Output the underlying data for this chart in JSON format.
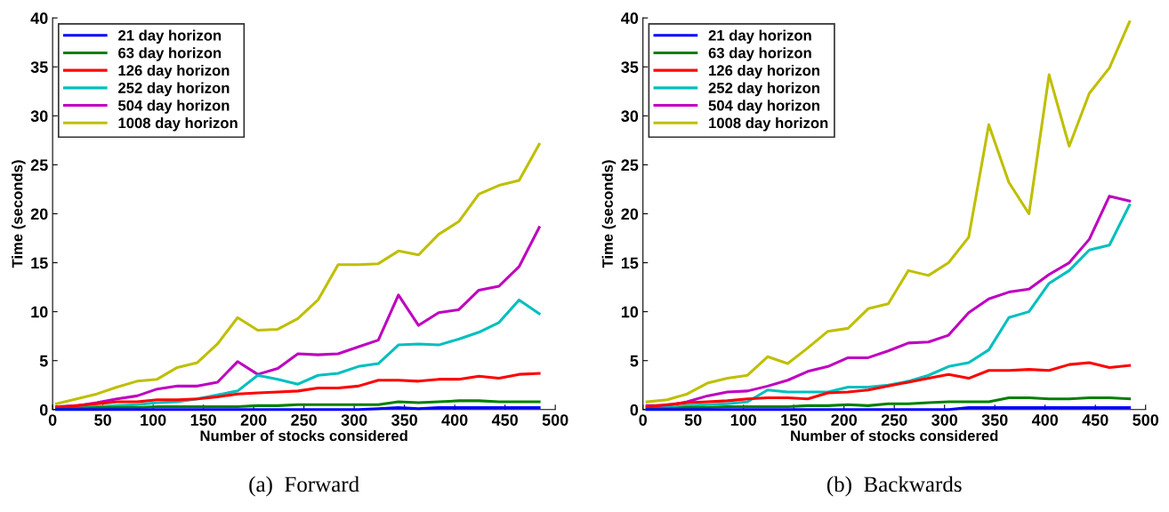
{
  "chart_data": [
    {
      "type": "line",
      "xlabel": "Number of stocks considered",
      "ylabel": "Time (seconds)",
      "annotations": [
        "(a)  Forward"
      ],
      "x": [
        4,
        24,
        44,
        64,
        84,
        104,
        124,
        144,
        164,
        184,
        204,
        224,
        244,
        264,
        284,
        304,
        324,
        344,
        364,
        384,
        404,
        424,
        444,
        464,
        484
      ],
      "xlim": [
        0,
        500
      ],
      "xticks": [
        0,
        50,
        100,
        150,
        200,
        250,
        300,
        350,
        400,
        450,
        500
      ],
      "ylim": [
        0,
        40
      ],
      "yticks": [
        0,
        5,
        10,
        15,
        20,
        25,
        30,
        35,
        40
      ],
      "grid": false,
      "legend": "top left",
      "marker": "none",
      "line_style": "solid",
      "series": [
        {
          "name": "21 day horizon",
          "color": "#0000ff",
          "values": [
            0.0,
            0.0,
            0.0,
            0.0,
            0.0,
            0.0,
            0.0,
            0.0,
            0.0,
            0.0,
            0.0,
            0.0,
            0.0,
            0.0,
            0.0,
            0.0,
            0.1,
            0.2,
            0.1,
            0.2,
            0.2,
            0.2,
            0.2,
            0.2,
            0.2
          ]
        },
        {
          "name": "63 day horizon",
          "color": "#008000",
          "values": [
            0.1,
            0.1,
            0.2,
            0.2,
            0.2,
            0.3,
            0.3,
            0.3,
            0.3,
            0.3,
            0.4,
            0.4,
            0.5,
            0.5,
            0.5,
            0.5,
            0.5,
            0.8,
            0.7,
            0.8,
            0.9,
            0.9,
            0.8,
            0.8,
            0.8
          ]
        },
        {
          "name": "126 day horizon",
          "color": "#ff0000",
          "values": [
            0.2,
            0.4,
            0.6,
            0.8,
            0.8,
            1.0,
            1.0,
            1.1,
            1.3,
            1.6,
            1.7,
            1.8,
            1.9,
            2.2,
            2.2,
            2.4,
            3.0,
            3.0,
            2.9,
            3.1,
            3.1,
            3.4,
            3.2,
            3.6,
            3.7
          ]
        },
        {
          "name": "252 day horizon",
          "color": "#00bfbf",
          "values": [
            0.1,
            0.2,
            0.3,
            0.4,
            0.5,
            0.7,
            0.8,
            1.1,
            1.5,
            1.9,
            3.5,
            3.1,
            2.6,
            3.5,
            3.7,
            4.4,
            4.7,
            6.6,
            6.7,
            6.6,
            7.2,
            7.9,
            8.9,
            11.2,
            9.8
          ]
        },
        {
          "name": "504 day horizon",
          "color": "#bf00bf",
          "values": [
            0.3,
            0.4,
            0.7,
            1.1,
            1.4,
            2.1,
            2.4,
            2.4,
            2.8,
            4.9,
            3.6,
            4.2,
            5.7,
            5.6,
            5.7,
            6.4,
            7.1,
            11.7,
            8.6,
            9.9,
            10.2,
            12.2,
            12.6,
            14.6,
            18.6
          ]
        },
        {
          "name": "1008 day horizon",
          "color": "#bfbf00",
          "values": [
            0.6,
            1.1,
            1.6,
            2.3,
            2.9,
            3.1,
            4.3,
            4.8,
            6.7,
            9.4,
            8.1,
            8.2,
            9.3,
            11.2,
            14.8,
            14.8,
            14.9,
            16.2,
            15.8,
            17.9,
            19.2,
            22.0,
            22.9,
            23.4,
            27.1
          ]
        }
      ]
    },
    {
      "type": "line",
      "xlabel": "Number of stocks considered",
      "ylabel": "Time (seconds)",
      "annotations": [
        "(b)  Backwards"
      ],
      "x": [
        4,
        24,
        44,
        64,
        84,
        104,
        124,
        144,
        164,
        184,
        204,
        224,
        244,
        264,
        284,
        304,
        324,
        344,
        364,
        384,
        404,
        424,
        444,
        464,
        484
      ],
      "xlim": [
        0,
        500
      ],
      "xticks": [
        0,
        50,
        100,
        150,
        200,
        250,
        300,
        350,
        400,
        450,
        500
      ],
      "ylim": [
        0,
        40
      ],
      "yticks": [
        0,
        5,
        10,
        15,
        20,
        25,
        30,
        35,
        40
      ],
      "grid": false,
      "legend": "top left",
      "marker": "none",
      "line_style": "solid",
      "series": [
        {
          "name": "21 day horizon",
          "color": "#0000ff",
          "values": [
            0.0,
            0.0,
            0.0,
            0.0,
            0.0,
            0.0,
            0.0,
            0.0,
            0.0,
            0.0,
            0.0,
            0.0,
            0.0,
            0.0,
            0.0,
            0.0,
            0.2,
            0.2,
            0.2,
            0.2,
            0.2,
            0.2,
            0.2,
            0.2,
            0.2
          ]
        },
        {
          "name": "63 day horizon",
          "color": "#008000",
          "values": [
            0.1,
            0.1,
            0.2,
            0.2,
            0.3,
            0.3,
            0.3,
            0.3,
            0.4,
            0.4,
            0.5,
            0.4,
            0.6,
            0.6,
            0.7,
            0.8,
            0.8,
            0.8,
            1.2,
            1.2,
            1.1,
            1.1,
            1.2,
            1.2,
            1.1
          ]
        },
        {
          "name": "126 day horizon",
          "color": "#ff0000",
          "values": [
            0.3,
            0.5,
            0.7,
            0.8,
            0.9,
            1.1,
            1.2,
            1.2,
            1.1,
            1.7,
            1.8,
            2.0,
            2.4,
            2.8,
            3.2,
            3.6,
            3.2,
            4.0,
            4.0,
            4.1,
            4.0,
            4.6,
            4.8,
            4.3,
            4.5
          ]
        },
        {
          "name": "252 day horizon",
          "color": "#00bfbf",
          "values": [
            0.1,
            0.2,
            0.4,
            0.5,
            0.6,
            0.8,
            2.0,
            1.8,
            1.8,
            1.8,
            2.3,
            2.3,
            2.5,
            2.9,
            3.5,
            4.4,
            4.8,
            6.1,
            9.4,
            10.0,
            12.9,
            14.2,
            16.3,
            16.8,
            20.9
          ]
        },
        {
          "name": "504 day horizon",
          "color": "#bf00bf",
          "values": [
            0.4,
            0.4,
            0.8,
            1.4,
            1.8,
            1.9,
            2.4,
            3.0,
            3.9,
            4.4,
            5.3,
            5.3,
            6.0,
            6.8,
            6.9,
            7.6,
            9.9,
            11.3,
            12.0,
            12.3,
            13.8,
            15.0,
            17.4,
            21.8,
            21.3
          ]
        },
        {
          "name": "1008 day horizon",
          "color": "#bfbf00",
          "values": [
            0.8,
            1.0,
            1.6,
            2.7,
            3.2,
            3.5,
            5.4,
            4.7,
            6.3,
            8.0,
            8.3,
            10.3,
            10.8,
            14.2,
            13.7,
            15.0,
            17.6,
            29.1,
            23.2,
            20.0,
            34.2,
            26.9,
            32.3,
            34.9,
            39.6
          ]
        }
      ]
    }
  ]
}
